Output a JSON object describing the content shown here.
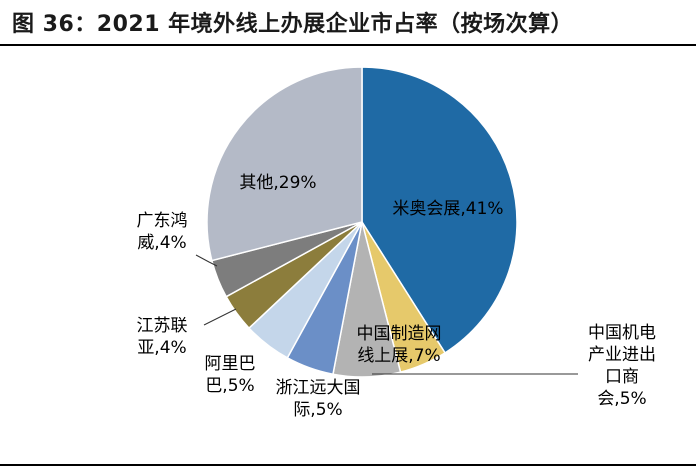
{
  "header": {
    "title": "图 36：2021 年境外线上办展企业市占率（按场次算）"
  },
  "chart_data": {
    "type": "pie",
    "title": "图 36：2021 年境外线上办展企业市占率（按场次算）",
    "start": "12 o'clock",
    "direction": "clockwise",
    "slices": [
      {
        "name": "米奥会展",
        "value": 41,
        "color": "#1f6aa5",
        "label_lines": [
          "米奥会展,41%"
        ]
      },
      {
        "name": "中国机电产业进出口商会",
        "value": 5,
        "color": "#e6c96b",
        "label_lines": [
          "中国机电",
          "产业进出",
          "口商",
          "会,5%"
        ]
      },
      {
        "name": "中国制造网线上展",
        "value": 7,
        "color": "#b3b3b3",
        "label_lines": [
          "中国制造网",
          "线上展,7%"
        ]
      },
      {
        "name": "浙江远大国际",
        "value": 5,
        "color": "#6b8fc7",
        "label_lines": [
          "浙江远大国",
          "际,5%"
        ]
      },
      {
        "name": "阿里巴巴",
        "value": 5,
        "color": "#c4d6ea",
        "label_lines": [
          "阿里巴",
          "巴,5%"
        ]
      },
      {
        "name": "江苏联亚",
        "value": 4,
        "color": "#8c7d3c",
        "label_lines": [
          "江苏联",
          "亚,4%"
        ]
      },
      {
        "name": "广东鸿威",
        "value": 4,
        "color": "#7d7d7d",
        "label_lines": [
          "广东鸿",
          "威,4%"
        ]
      },
      {
        "name": "其他",
        "value": 29,
        "color": "#b4bac7",
        "label_lines": [
          "其他,29%"
        ]
      }
    ]
  }
}
